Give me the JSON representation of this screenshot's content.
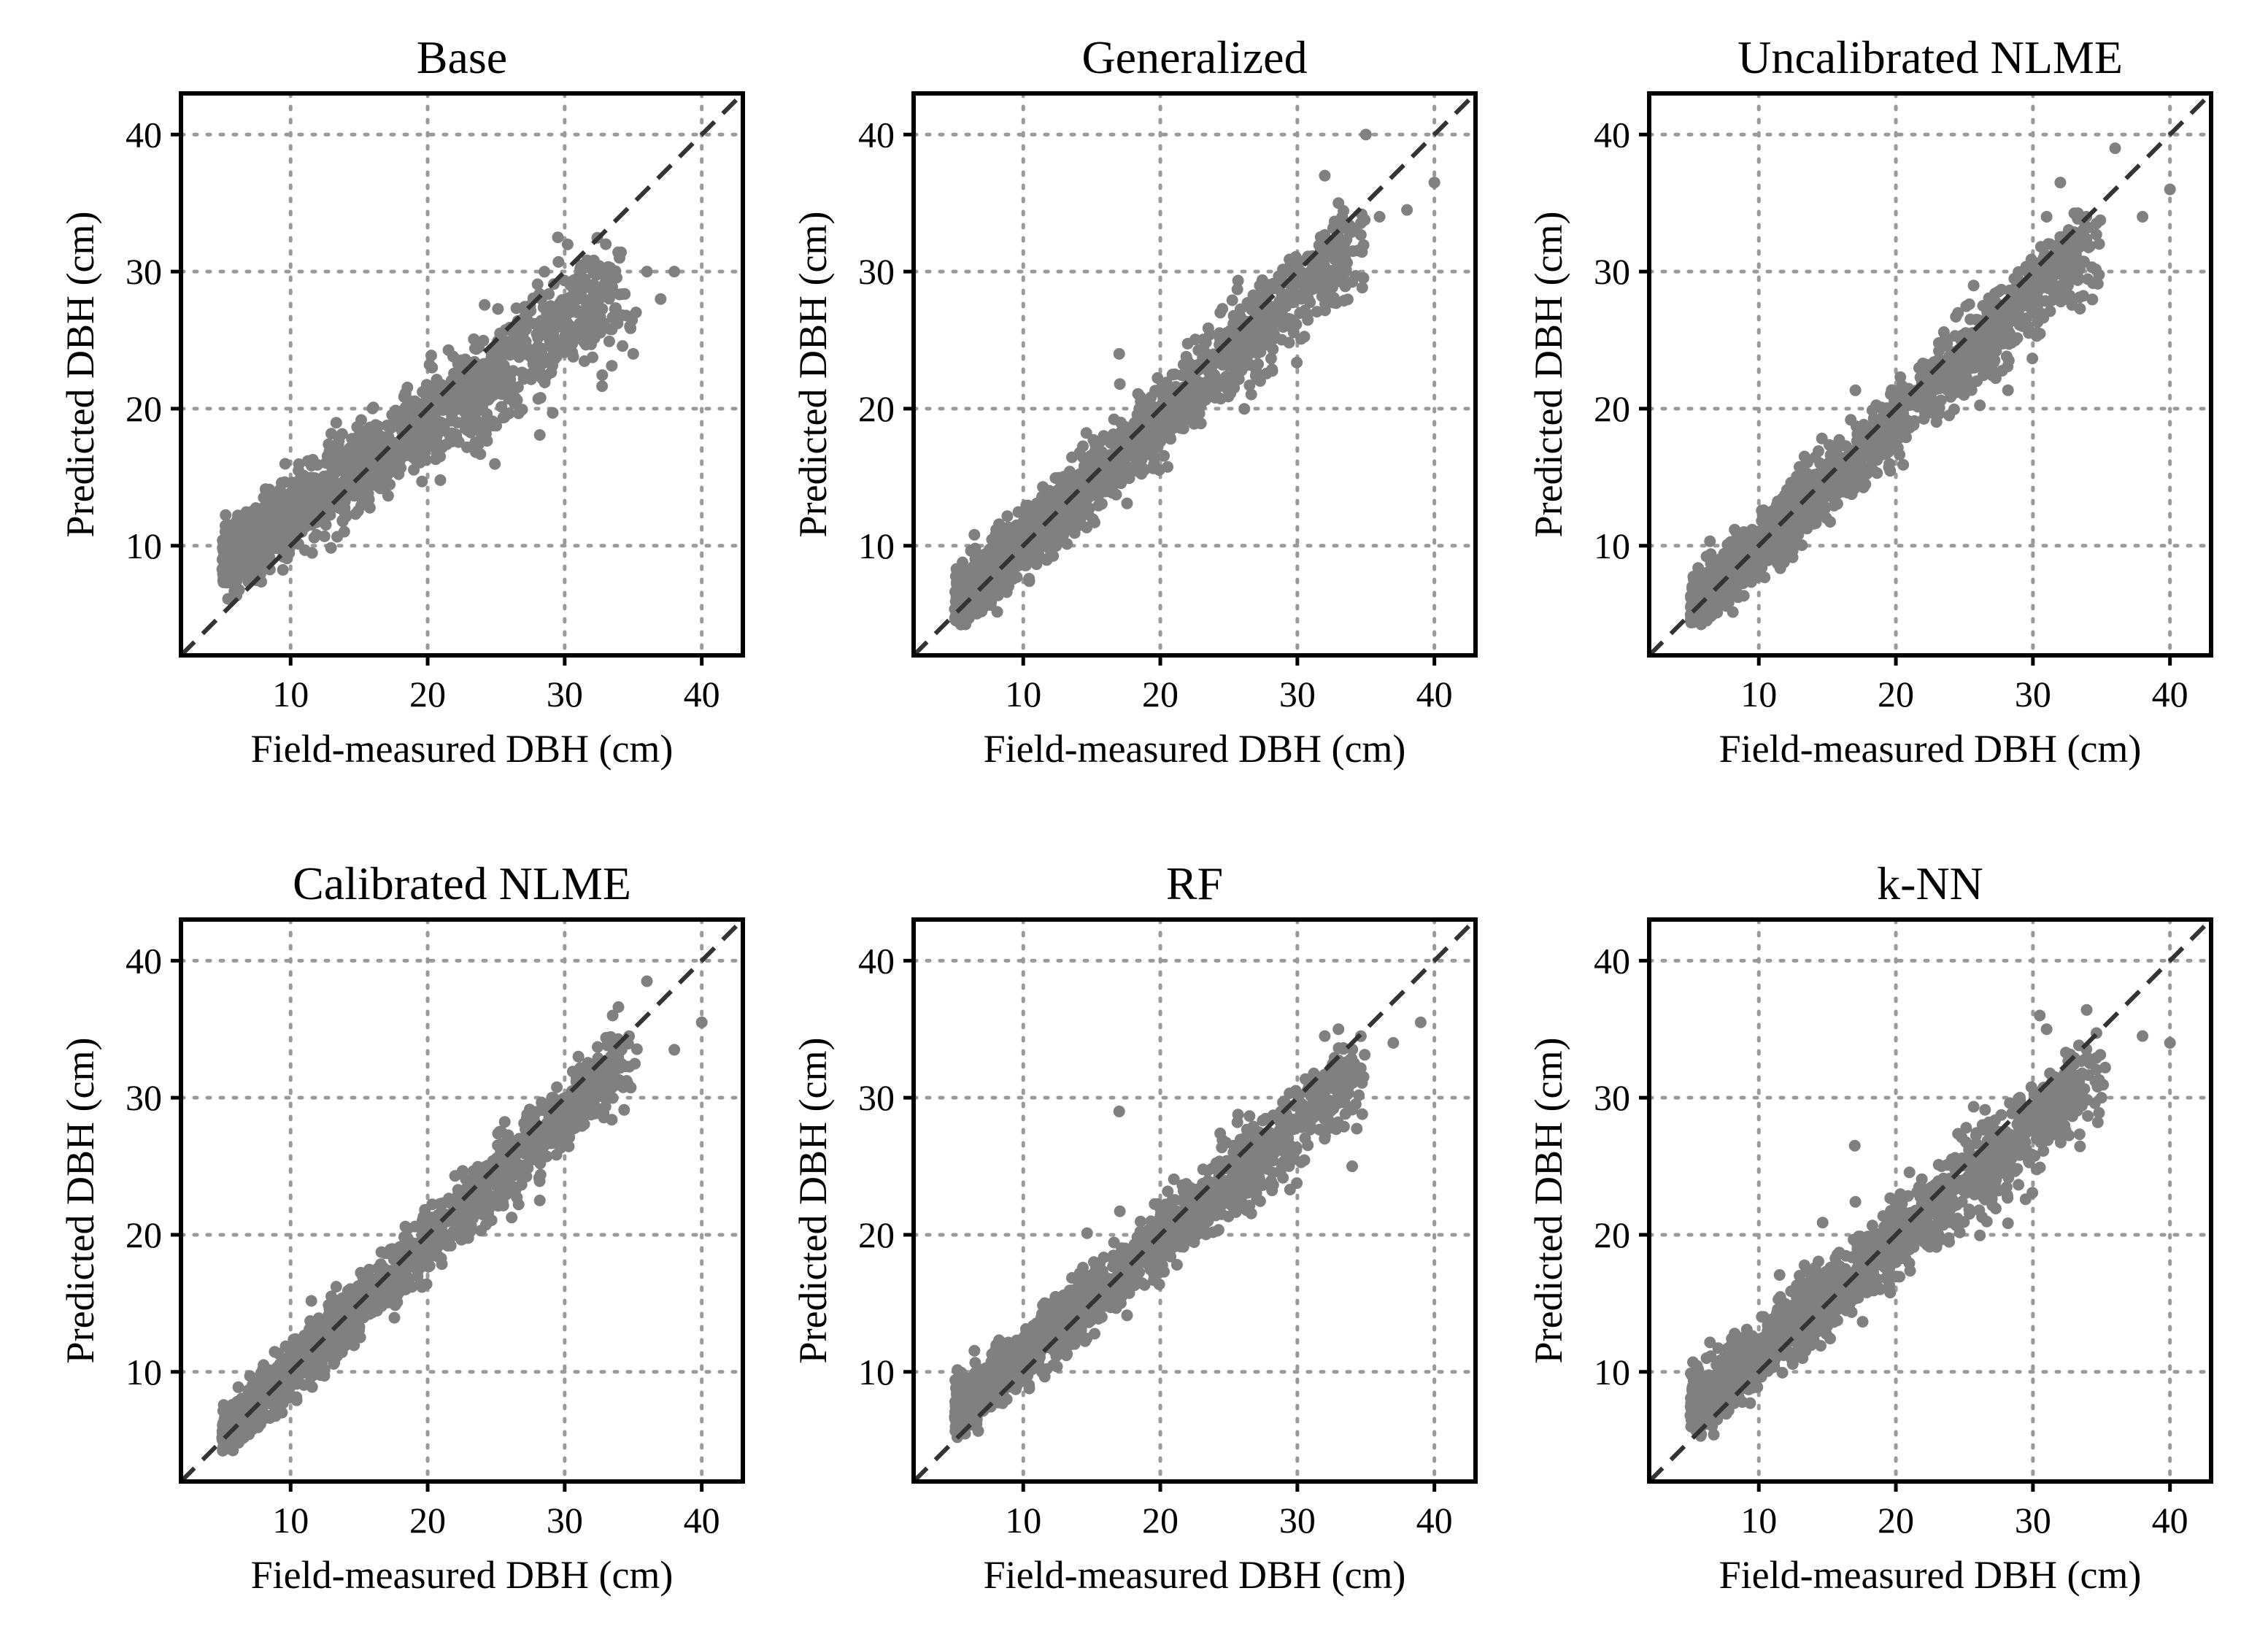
{
  "figure": {
    "panel_count": 6,
    "point_color": "#808080",
    "identity_line_color": "#333333",
    "grid_color": "#9a9a9a"
  },
  "chart_data": [
    {
      "type": "scatter",
      "title": "Base",
      "xlabel": "Field-measured DBH (cm)",
      "ylabel": "Predicted DBH (cm)",
      "xlim": [
        2,
        43
      ],
      "ylim": [
        2,
        43
      ],
      "xticks": [
        10,
        20,
        30,
        40
      ],
      "yticks": [
        10,
        20,
        30,
        40
      ],
      "tick_labels": [
        "10",
        "20",
        "30",
        "40"
      ],
      "grid": true,
      "reference_line": "1:1 dashed",
      "scatter_model": {
        "x_range": [
          5,
          40
        ],
        "intercept": 5.5,
        "slope": 0.68,
        "spread": 1.9,
        "outliers": [
          [
            36,
            30
          ],
          [
            37,
            28
          ],
          [
            38,
            30
          ],
          [
            34,
            31
          ],
          [
            33,
            32
          ],
          [
            35,
            24
          ],
          [
            29.5,
            32.5
          ]
        ]
      }
    },
    {
      "type": "scatter",
      "title": "Generalized",
      "xlabel": "Field-measured DBH (cm)",
      "ylabel": "Predicted DBH (cm)",
      "xlim": [
        2,
        43
      ],
      "ylim": [
        2,
        43
      ],
      "xticks": [
        10,
        20,
        30,
        40
      ],
      "yticks": [
        10,
        20,
        30,
        40
      ],
      "tick_labels": [
        "10",
        "20",
        "30",
        "40"
      ],
      "grid": true,
      "reference_line": "1:1 dashed",
      "scatter_model": {
        "x_range": [
          5,
          40
        ],
        "intercept": 1.2,
        "slope": 0.9,
        "spread": 1.6,
        "outliers": [
          [
            35,
            40
          ],
          [
            32,
            37
          ],
          [
            40,
            36.5
          ],
          [
            38,
            34.5
          ],
          [
            36,
            34
          ],
          [
            17,
            24
          ],
          [
            33,
            35
          ]
        ]
      }
    },
    {
      "type": "scatter",
      "title": "Uncalibrated NLME",
      "xlabel": "Field-measured DBH (cm)",
      "ylabel": "Predicted DBH (cm)",
      "xlim": [
        2,
        43
      ],
      "ylim": [
        2,
        43
      ],
      "xticks": [
        10,
        20,
        30,
        40
      ],
      "yticks": [
        10,
        20,
        30,
        40
      ],
      "tick_labels": [
        "10",
        "20",
        "30",
        "40"
      ],
      "grid": true,
      "reference_line": "1:1 dashed",
      "scatter_model": {
        "x_range": [
          5,
          40
        ],
        "intercept": 0.9,
        "slope": 0.91,
        "spread": 1.5,
        "outliers": [
          [
            36,
            39
          ],
          [
            32,
            36.5
          ],
          [
            40,
            36
          ],
          [
            38,
            34
          ],
          [
            31,
            34
          ]
        ]
      }
    },
    {
      "type": "scatter",
      "title": "Calibrated NLME",
      "xlabel": "Field-measured DBH (cm)",
      "ylabel": "Predicted DBH (cm)",
      "xlim": [
        2,
        43
      ],
      "ylim": [
        2,
        43
      ],
      "xticks": [
        10,
        20,
        30,
        40
      ],
      "yticks": [
        10,
        20,
        30,
        40
      ],
      "tick_labels": [
        "10",
        "20",
        "30",
        "40"
      ],
      "grid": true,
      "reference_line": "1:1 dashed",
      "scatter_model": {
        "x_range": [
          5,
          40
        ],
        "intercept": 0.8,
        "slope": 0.93,
        "spread": 1.3,
        "outliers": [
          [
            36,
            38.5
          ],
          [
            33.5,
            36
          ],
          [
            40,
            35.5
          ],
          [
            38,
            33.5
          ],
          [
            31,
            33
          ]
        ]
      }
    },
    {
      "type": "scatter",
      "title": "RF",
      "xlabel": "Field-measured DBH (cm)",
      "ylabel": "Predicted DBH (cm)",
      "xlim": [
        2,
        43
      ],
      "ylim": [
        2,
        43
      ],
      "xticks": [
        10,
        20,
        30,
        40
      ],
      "yticks": [
        10,
        20,
        30,
        40
      ],
      "tick_labels": [
        "10",
        "20",
        "30",
        "40"
      ],
      "grid": true,
      "reference_line": "1:1 dashed",
      "scatter_model": {
        "x_range": [
          5,
          40
        ],
        "intercept": 2.8,
        "slope": 0.84,
        "spread": 1.4,
        "outliers": [
          [
            39,
            35.5
          ],
          [
            33,
            35
          ],
          [
            37,
            34
          ],
          [
            17,
            29
          ],
          [
            32,
            34.5
          ],
          [
            34,
            25
          ]
        ]
      }
    },
    {
      "type": "scatter",
      "title": "k-NN",
      "xlabel": "Field-measured DBH (cm)",
      "ylabel": "Predicted DBH (cm)",
      "xlim": [
        2,
        43
      ],
      "ylim": [
        2,
        43
      ],
      "xticks": [
        10,
        20,
        30,
        40
      ],
      "yticks": [
        10,
        20,
        30,
        40
      ],
      "tick_labels": [
        "10",
        "20",
        "30",
        "40"
      ],
      "grid": true,
      "reference_line": "1:1 dashed",
      "scatter_model": {
        "x_range": [
          5,
          40
        ],
        "intercept": 3.0,
        "slope": 0.83,
        "spread": 1.6,
        "outliers": [
          [
            30.5,
            36
          ],
          [
            40,
            34
          ],
          [
            38,
            34.5
          ],
          [
            35,
            30
          ],
          [
            17,
            26.5
          ],
          [
            31,
            35
          ]
        ]
      }
    }
  ]
}
